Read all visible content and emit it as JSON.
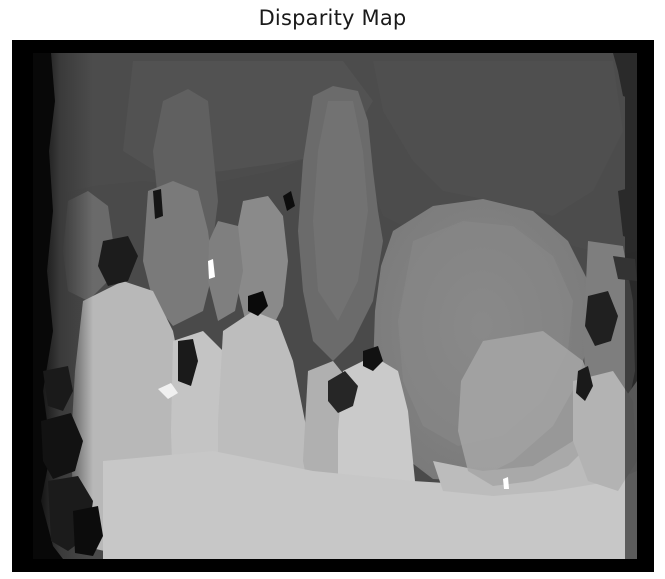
{
  "title": "Disparity Map",
  "image": {
    "kind": "grayscale depth/disparity image",
    "colormap": "gray",
    "background_color": "#000000",
    "axes_visible": false
  }
}
